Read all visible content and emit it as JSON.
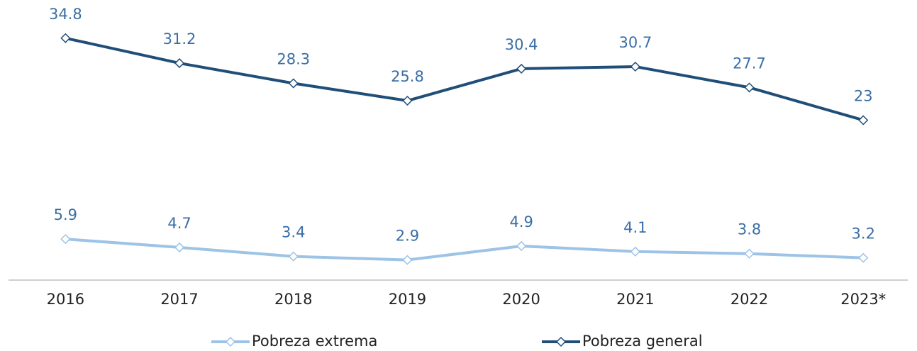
{
  "chart_data": {
    "type": "line",
    "categories": [
      "2016",
      "2017",
      "2018",
      "2019",
      "2020",
      "2021",
      "2022",
      "2023*"
    ],
    "series": [
      {
        "name": "Pobreza extrema",
        "color": "#9dc3e6",
        "values": [
          5.9,
          4.7,
          3.4,
          2.9,
          4.9,
          4.1,
          3.8,
          3.2
        ]
      },
      {
        "name": "Pobreza general",
        "color": "#1f4e79",
        "values": [
          34.8,
          31.2,
          28.3,
          25.8,
          30.4,
          30.7,
          27.7,
          23.0
        ]
      }
    ],
    "ylim": [
      0,
      36
    ],
    "legend": "bottom"
  }
}
